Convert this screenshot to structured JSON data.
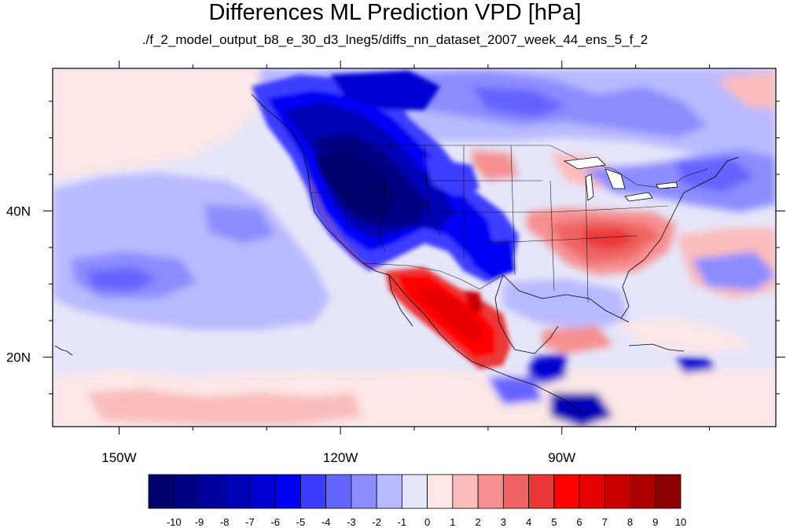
{
  "title": "Differences ML Prediction VPD [hPa]",
  "subtitle": "./f_2_model_output_b8_e_30_d3_lneg5/diffs_nn_dataset_2007_week_44_ens_5_f_2",
  "x_ticks": [
    {
      "value": -150,
      "label": "150W"
    },
    {
      "value": -120,
      "label": "120W"
    },
    {
      "value": -90,
      "label": "90W"
    }
  ],
  "y_ticks": [
    {
      "value": 40,
      "label": "40N"
    },
    {
      "value": 20,
      "label": "20N"
    }
  ],
  "lon_range": [
    -159,
    -61
  ],
  "lat_range": [
    10.5,
    59.5
  ],
  "colorbar": {
    "labels": [
      "-10",
      "-9",
      "-8",
      "-7",
      "-6",
      "-5",
      "-4",
      "-3",
      "-2",
      "-1",
      "0",
      "1",
      "2",
      "3",
      "4",
      "5",
      "6",
      "7",
      "8",
      "9",
      "10"
    ],
    "colors": [
      "#00006e",
      "#000084",
      "#00009b",
      "#0000b4",
      "#0000d2",
      "#0000f5",
      "#3c3cff",
      "#6464ff",
      "#8c8cff",
      "#b9b9ff",
      "#e6e6fa",
      "#fde7e7",
      "#fbbcbc",
      "#f68f8f",
      "#f06363",
      "#ea3737",
      "#ff0000",
      "#e60000",
      "#c80000",
      "#aa0000",
      "#8b0000"
    ]
  }
}
